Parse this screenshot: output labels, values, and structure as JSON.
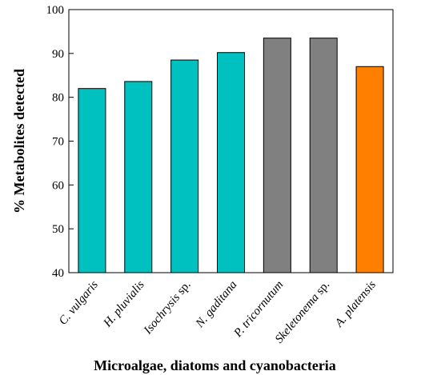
{
  "chart_data": {
    "type": "bar",
    "title": "",
    "xlabel": "Microalgae, diatoms and cyanobacteria",
    "ylabel": "% Metabolites detected",
    "ylim": [
      40,
      100
    ],
    "yticks": [
      40,
      50,
      60,
      70,
      80,
      90,
      100
    ],
    "grid": false,
    "categories": [
      {
        "label": "C. vulgaris",
        "italic": "C. vulgaris",
        "roman": ""
      },
      {
        "label": "H. pluvialis",
        "italic": "H. pluvialis",
        "roman": ""
      },
      {
        "label": "Isochrysis sp.",
        "italic": "Isochrysis",
        "roman": " sp."
      },
      {
        "label": "N. gaditana",
        "italic": "N. gaditana",
        "roman": ""
      },
      {
        "label": "P. tricornutum",
        "italic": "P. tricornutum",
        "roman": ""
      },
      {
        "label": "Skeletonema sp.",
        "italic": "Skeletonema",
        "roman": " sp."
      },
      {
        "label": "A. platensis",
        "italic": "A. platensis",
        "roman": ""
      }
    ],
    "values": [
      82.0,
      83.6,
      88.5,
      90.2,
      93.5,
      93.5,
      87.0
    ],
    "colors": [
      "#00C0C0",
      "#00C0C0",
      "#00C0C0",
      "#00C0C0",
      "#808080",
      "#808080",
      "#FF8000"
    ]
  }
}
